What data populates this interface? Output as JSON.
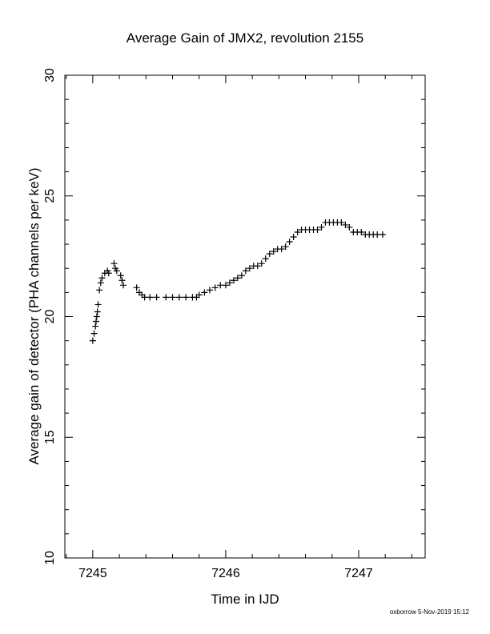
{
  "chart_data": {
    "type": "scatter",
    "title": "Average Gain of JMX2, revolution 2155",
    "xlabel": "Time in IJD",
    "ylabel": "Average gain of detector (PHA channels per keV)",
    "xlim": [
      7244.79,
      7247.5
    ],
    "ylim": [
      10,
      30
    ],
    "x_ticks": [
      7245,
      7246,
      7247
    ],
    "y_ticks": [
      10,
      15,
      20,
      25,
      30
    ],
    "grid": false,
    "marker": "plus",
    "footer": "oxborrow  5-Nov-2019 15:12",
    "points": [
      [
        7245.0,
        19.0
      ],
      [
        7245.01,
        19.3
      ],
      [
        7245.02,
        19.6
      ],
      [
        7245.025,
        19.8
      ],
      [
        7245.03,
        20.0
      ],
      [
        7245.035,
        20.2
      ],
      [
        7245.04,
        20.5
      ],
      [
        7245.05,
        21.1
      ],
      [
        7245.06,
        21.4
      ],
      [
        7245.07,
        21.6
      ],
      [
        7245.09,
        21.8
      ],
      [
        7245.11,
        21.9
      ],
      [
        7245.12,
        21.8
      ],
      [
        7245.16,
        22.2
      ],
      [
        7245.17,
        22.0
      ],
      [
        7245.18,
        21.9
      ],
      [
        7245.21,
        21.7
      ],
      [
        7245.22,
        21.5
      ],
      [
        7245.23,
        21.3
      ],
      [
        7245.33,
        21.2
      ],
      [
        7245.35,
        21.0
      ],
      [
        7245.37,
        20.9
      ],
      [
        7245.39,
        20.8
      ],
      [
        7245.43,
        20.8
      ],
      [
        7245.48,
        20.8
      ],
      [
        7245.55,
        20.8
      ],
      [
        7245.6,
        20.8
      ],
      [
        7245.65,
        20.8
      ],
      [
        7245.7,
        20.8
      ],
      [
        7245.75,
        20.8
      ],
      [
        7245.78,
        20.8
      ],
      [
        7245.8,
        20.9
      ],
      [
        7245.84,
        21.0
      ],
      [
        7245.88,
        21.1
      ],
      [
        7245.92,
        21.2
      ],
      [
        7245.96,
        21.3
      ],
      [
        7246.0,
        21.3
      ],
      [
        7246.03,
        21.4
      ],
      [
        7246.06,
        21.5
      ],
      [
        7246.09,
        21.6
      ],
      [
        7246.12,
        21.7
      ],
      [
        7246.15,
        21.9
      ],
      [
        7246.18,
        22.0
      ],
      [
        7246.21,
        22.1
      ],
      [
        7246.24,
        22.1
      ],
      [
        7246.27,
        22.2
      ],
      [
        7246.3,
        22.4
      ],
      [
        7246.33,
        22.6
      ],
      [
        7246.36,
        22.7
      ],
      [
        7246.39,
        22.8
      ],
      [
        7246.42,
        22.8
      ],
      [
        7246.45,
        22.9
      ],
      [
        7246.48,
        23.1
      ],
      [
        7246.51,
        23.3
      ],
      [
        7246.54,
        23.5
      ],
      [
        7246.57,
        23.6
      ],
      [
        7246.6,
        23.6
      ],
      [
        7246.63,
        23.6
      ],
      [
        7246.66,
        23.6
      ],
      [
        7246.69,
        23.6
      ],
      [
        7246.72,
        23.7
      ],
      [
        7246.75,
        23.9
      ],
      [
        7246.78,
        23.9
      ],
      [
        7246.81,
        23.9
      ],
      [
        7246.84,
        23.9
      ],
      [
        7246.87,
        23.9
      ],
      [
        7246.9,
        23.8
      ],
      [
        7246.93,
        23.7
      ],
      [
        7246.96,
        23.5
      ],
      [
        7246.99,
        23.5
      ],
      [
        7247.02,
        23.5
      ],
      [
        7247.05,
        23.4
      ],
      [
        7247.08,
        23.4
      ],
      [
        7247.11,
        23.4
      ],
      [
        7247.14,
        23.4
      ],
      [
        7247.18,
        23.4
      ]
    ]
  }
}
